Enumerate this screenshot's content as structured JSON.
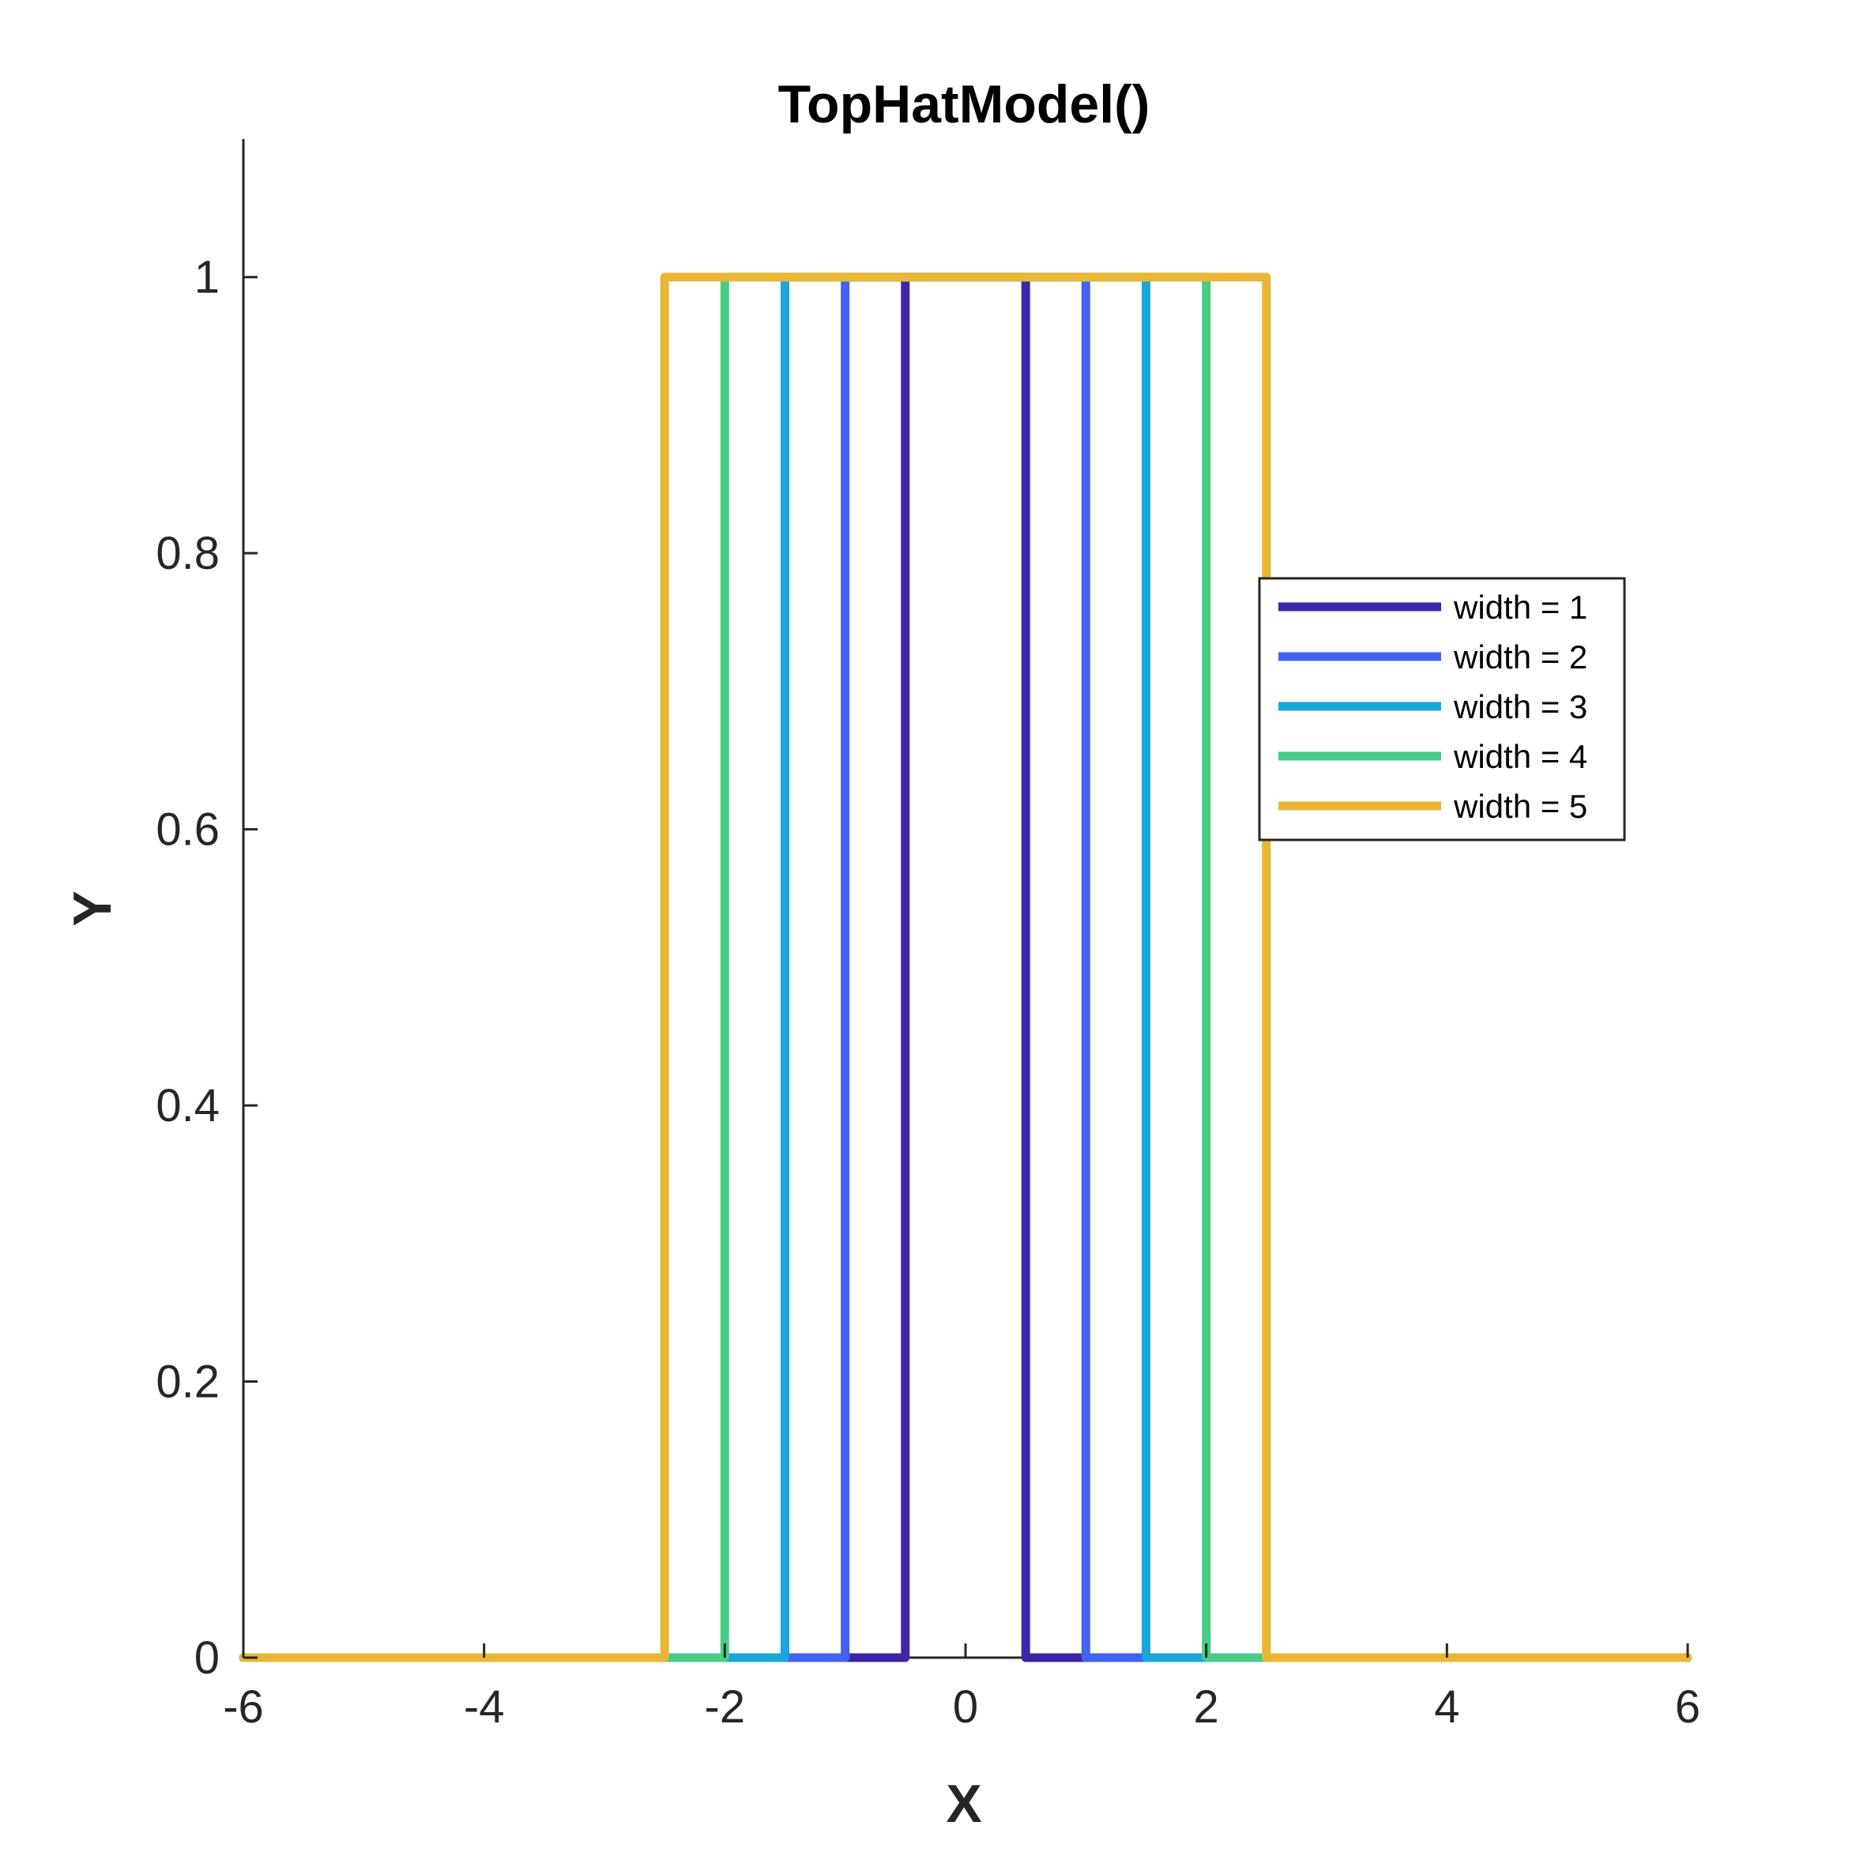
{
  "chart_data": {
    "type": "line",
    "title": "TopHatModel()",
    "xlabel": "X",
    "ylabel": "Y",
    "xlim": [
      -6,
      6
    ],
    "ylim": [
      0,
      1.1
    ],
    "xticks": [
      -6,
      -4,
      -2,
      0,
      2,
      4,
      6
    ],
    "xtick_labels": [
      "-6",
      "-4",
      "-2",
      "0",
      "2",
      "4",
      "6"
    ],
    "yticks": [
      0,
      0.2,
      0.4,
      0.6,
      0.8,
      1
    ],
    "ytick_labels": [
      "0",
      "0.2",
      "0.4",
      "0.6",
      "0.8",
      "1"
    ],
    "grid": false,
    "legend_position": "right",
    "series": [
      {
        "name": "width = 1",
        "color": "#3e26a8",
        "x": [
          -6,
          -0.5,
          -0.5,
          0.5,
          0.5,
          6
        ],
        "y": [
          0,
          0,
          1,
          1,
          0,
          0
        ]
      },
      {
        "name": "width = 2",
        "color": "#4263f4",
        "x": [
          -6,
          -1,
          -1,
          1,
          1,
          6
        ],
        "y": [
          0,
          0,
          1,
          1,
          0,
          0
        ]
      },
      {
        "name": "width = 3",
        "color": "#1ba6dc",
        "x": [
          -6,
          -1.5,
          -1.5,
          1.5,
          1.5,
          6
        ],
        "y": [
          0,
          0,
          1,
          1,
          0,
          0
        ]
      },
      {
        "name": "width = 4",
        "color": "#48cb86",
        "x": [
          -6,
          -2,
          -2,
          2,
          2,
          6
        ],
        "y": [
          0,
          0,
          1,
          1,
          0,
          0
        ]
      },
      {
        "name": "width = 5",
        "color": "#eab735",
        "x": [
          -6,
          -2.5,
          -2.5,
          2.5,
          2.5,
          6
        ],
        "y": [
          0,
          0,
          1,
          1,
          0,
          0
        ]
      }
    ]
  }
}
